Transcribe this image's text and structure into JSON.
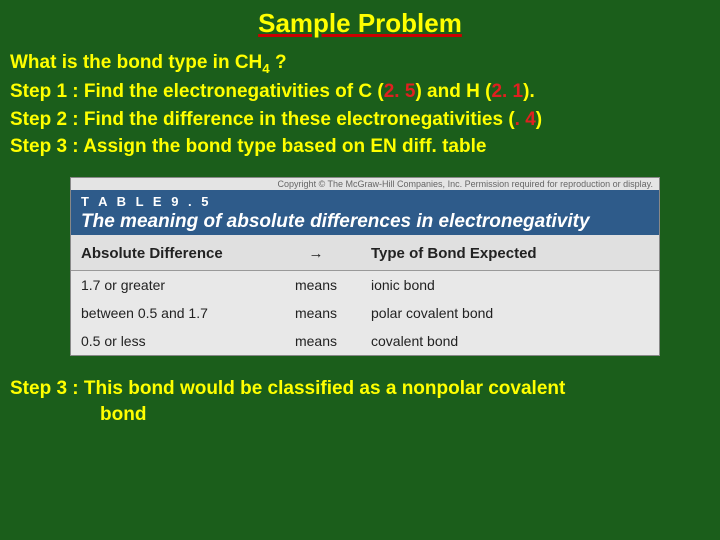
{
  "title": "Sample Problem",
  "question_prefix": "What is the bond type in CH",
  "question_sub": "4",
  "question_suffix": " ?",
  "step1_a": "Step 1 : Find the electronegativities of C (",
  "step1_v1": "2. 5",
  "step1_b": ") and H (",
  "step1_v2": "2. 1",
  "step1_c": ").",
  "step2_a": "Step 2 : Find the difference in these electronegativities (",
  "step2_v": ". 4",
  "step2_b": ")",
  "step3": "Step 3 : Assign the bond type based on EN diff. table",
  "table": {
    "copyright": "Copyright © The McGraw-Hill Companies, Inc. Permission required for reproduction or display.",
    "label": "T A B L E  9 . 5",
    "caption": "The meaning of absolute differences in electronegativity",
    "col1_header": "Absolute Difference",
    "arrow_header": "→",
    "col2_header": "Type of Bond Expected",
    "rows": [
      {
        "diff": "1.7 or greater",
        "means": "means",
        "bond": "ionic bond"
      },
      {
        "diff": "between 0.5 and 1.7",
        "means": "means",
        "bond": "polar covalent bond"
      },
      {
        "diff": "0.5 or less",
        "means": "means",
        "bond": "covalent bond"
      }
    ]
  },
  "conclusion_a": "Step 3 : This bond would be classified as a nonpolar covalent",
  "conclusion_b": "bond",
  "colors": {
    "background": "#1b5e1b",
    "text": "#ffff00",
    "highlight": "#e02020",
    "table_header_bg": "#2e5b8a",
    "table_bg": "#e8e8e8"
  }
}
